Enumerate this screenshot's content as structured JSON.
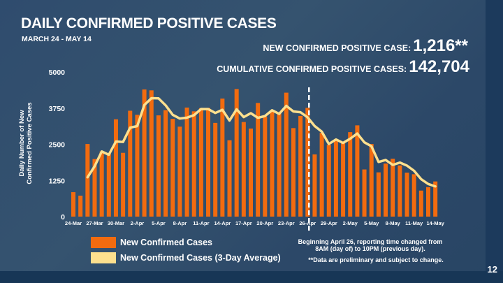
{
  "title": "DAILY CONFIRMED POSITIVE CASES",
  "subtitle": "MARCH 24 - MAY 14",
  "stats": {
    "new_label": "NEW CONFIRMED POSITIVE CASE:",
    "new_value": "1,216**",
    "cumulative_label": "CUMULATIVE CONFIRMED POSITIVE CASES:",
    "cumulative_value": "142,704"
  },
  "legend": {
    "bars": "New Confirmed Cases",
    "line": "New Confirmed Cases (3-Day Average)"
  },
  "notes": {
    "reporting": "Beginning April 26, reporting time changed from 8AM (day of) to 10PM (previous day).",
    "preliminary": "**Data are preliminary and subject to change."
  },
  "page_number": "12",
  "colors": {
    "bar": "#f26b0f",
    "line": "#fde08e",
    "text": "#ffffff"
  },
  "chart_data": {
    "type": "bar",
    "title": "DAILY CONFIRMED POSITIVE CASES",
    "xlabel": "",
    "ylabel": [
      "Daily Number of New",
      "Confirmed Positive Cases"
    ],
    "ylim": [
      0,
      5000
    ],
    "yticks": [
      0,
      1250,
      2500,
      3750,
      5000
    ],
    "xtick_labels": [
      "24-Mar",
      "27-Mar",
      "30-Mar",
      "2-Apr",
      "5-Apr",
      "8-Apr",
      "11-Apr",
      "14-Apr",
      "17-Apr",
      "20-Apr",
      "23-Apr",
      "26-Apr",
      "29-Apr",
      "2-May",
      "5-May",
      "8-May",
      "11-May",
      "14-May"
    ],
    "xtick_every": 3,
    "reporting_change_after_index": 33,
    "series": [
      {
        "name": "New Confirmed Cases",
        "type": "bar",
        "values": [
          845,
          725,
          2510,
          1990,
          2255,
          2170,
          3365,
          2205,
          3660,
          3520,
          4395,
          4365,
          3500,
          3680,
          3380,
          3110,
          3770,
          3640,
          3750,
          3760,
          3240,
          4080,
          2640,
          4410,
          3270,
          3045,
          3930,
          3460,
          3640,
          3560,
          4285,
          3060,
          3480,
          3760,
          2150,
          2900,
          2480,
          2620,
          2540,
          2920,
          3155,
          1630,
          2510,
          1530,
          1835,
          2000,
          1770,
          1520,
          1465,
          900,
          1020,
          1216
        ]
      },
      {
        "name": "New Confirmed Cases (3-Day Average)",
        "type": "line",
        "start_index": 2,
        "values": [
          1360,
          1742,
          2252,
          2138,
          2597,
          2580,
          3077,
          3128,
          3858,
          4093,
          4087,
          3848,
          3520,
          3390,
          3420,
          3507,
          3720,
          3717,
          3583,
          3693,
          3320,
          3710,
          3440,
          3575,
          3415,
          3478,
          3677,
          3553,
          3828,
          3635,
          3608,
          3433,
          3130,
          2937,
          2510,
          2667,
          2547,
          2693,
          2872,
          2568,
          2432,
          1890,
          1958,
          1788,
          1868,
          1763,
          1585,
          1295,
          1128,
          1045
        ]
      }
    ]
  }
}
